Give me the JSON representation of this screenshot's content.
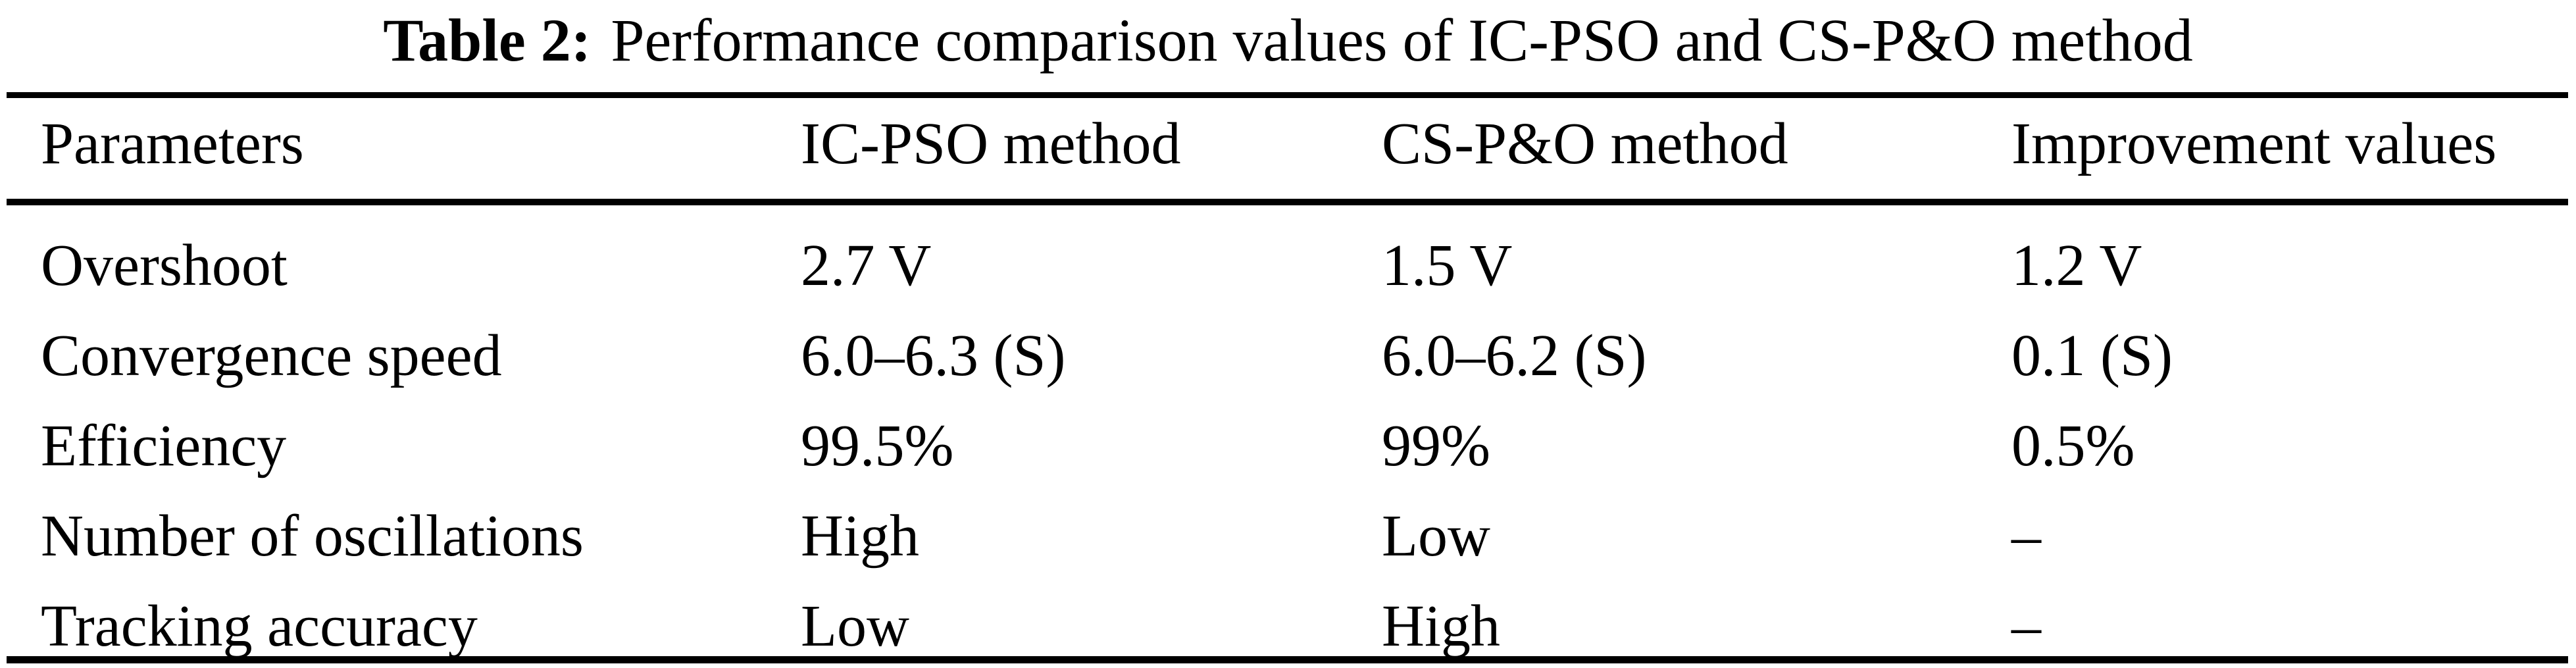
{
  "title": {
    "label": "Table 2:",
    "text": "Performance comparison values of IC-PSO and CS-P&O method"
  },
  "table": {
    "columns": [
      "Parameters",
      "IC-PSO method",
      "CS-P&O method",
      "Improvement values"
    ],
    "rows": [
      [
        "Overshoot",
        "2.7 V",
        "1.5 V",
        "1.2 V"
      ],
      [
        "Convergence speed",
        "6.0–6.3 (S)",
        "6.0–6.2 (S)",
        "0.1 (S)"
      ],
      [
        "Efficiency",
        "99.5%",
        "99%",
        "0.5%"
      ],
      [
        "Number of oscillations",
        "High",
        "Low",
        "–"
      ],
      [
        "Tracking accuracy",
        "Low",
        "High",
        "–"
      ]
    ]
  },
  "colors": {
    "text": "#000000",
    "background": "#ffffff",
    "rule": "#000000"
  }
}
